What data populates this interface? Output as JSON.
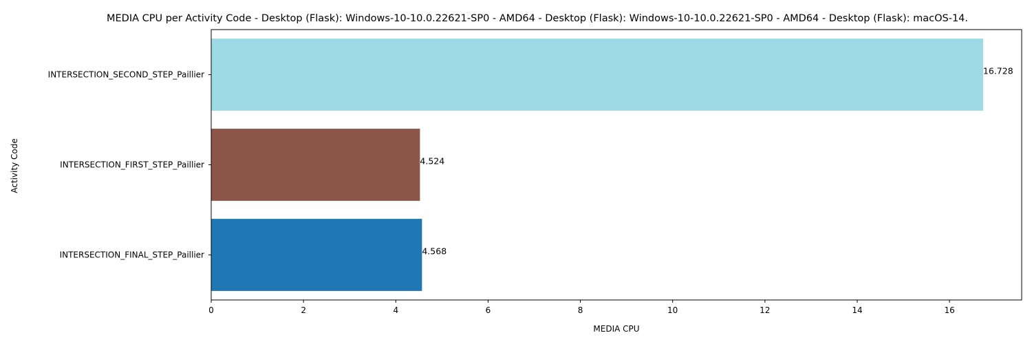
{
  "chart_data": {
    "type": "bar",
    "orientation": "horizontal",
    "title": "MEDIA CPU per Activity Code - Desktop (Flask): Windows-10-10.0.22621-SP0 - AMD64 - Desktop (Flask): Windows-10-10.0.22621-SP0 - AMD64 - Desktop (Flask): macOS-14.",
    "xlabel": "MEDIA CPU",
    "ylabel": "Activity Code",
    "xlim": [
      0,
      17.564
    ],
    "xticks": [
      "0",
      "2",
      "4",
      "6",
      "8",
      "10",
      "12",
      "14",
      "16"
    ],
    "categories": [
      "INTERSECTION_SECOND_STEP_Paillier",
      "INTERSECTION_FIRST_STEP_Paillier",
      "INTERSECTION_FINAL_STEP_Paillier"
    ],
    "values": [
      16.728,
      4.524,
      4.568
    ],
    "data_labels": [
      "16.728",
      "4.524",
      "4.568"
    ],
    "colors": [
      "#9edae5",
      "#8c564b",
      "#1f77b4"
    ],
    "grid": false,
    "legend": "none"
  }
}
